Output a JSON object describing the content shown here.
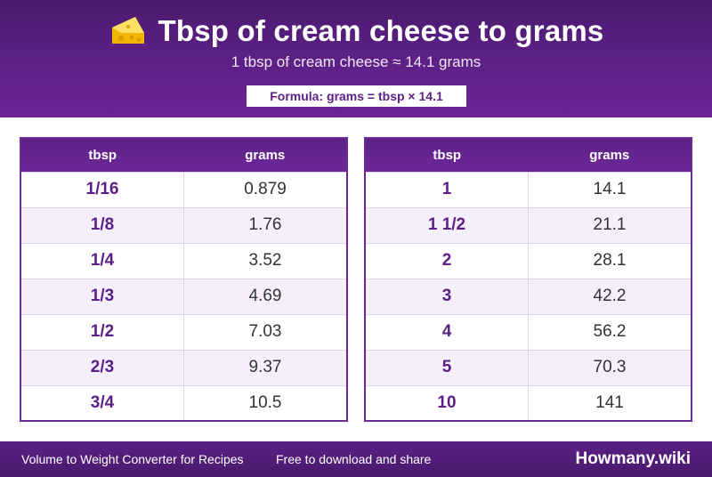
{
  "header": {
    "icon": "cheese-icon",
    "title": "Tbsp of cream cheese to grams",
    "subtitle": "1 tbsp of cream cheese ≈ 14.1 grams",
    "formula": "Formula: grams = tbsp × 14.1"
  },
  "tables": [
    {
      "headers": [
        "tbsp",
        "grams"
      ],
      "rows": [
        [
          "1/16",
          "0.879"
        ],
        [
          "1/8",
          "1.76"
        ],
        [
          "1/4",
          "3.52"
        ],
        [
          "1/3",
          "4.69"
        ],
        [
          "1/2",
          "7.03"
        ],
        [
          "2/3",
          "9.37"
        ],
        [
          "3/4",
          "10.5"
        ]
      ]
    },
    {
      "headers": [
        "tbsp",
        "grams"
      ],
      "rows": [
        [
          "1",
          "14.1"
        ],
        [
          "1 1/2",
          "21.1"
        ],
        [
          "2",
          "28.1"
        ],
        [
          "3",
          "42.2"
        ],
        [
          "4",
          "56.2"
        ],
        [
          "5",
          "70.3"
        ],
        [
          "10",
          "141"
        ]
      ]
    }
  ],
  "footer": {
    "left": "Volume to Weight Converter for Recipes",
    "middle": "Free to download and share",
    "brand": "Howmany.wiki"
  },
  "colors": {
    "brand_purple": "#5b1f86",
    "row_alt": "#f4effa"
  }
}
